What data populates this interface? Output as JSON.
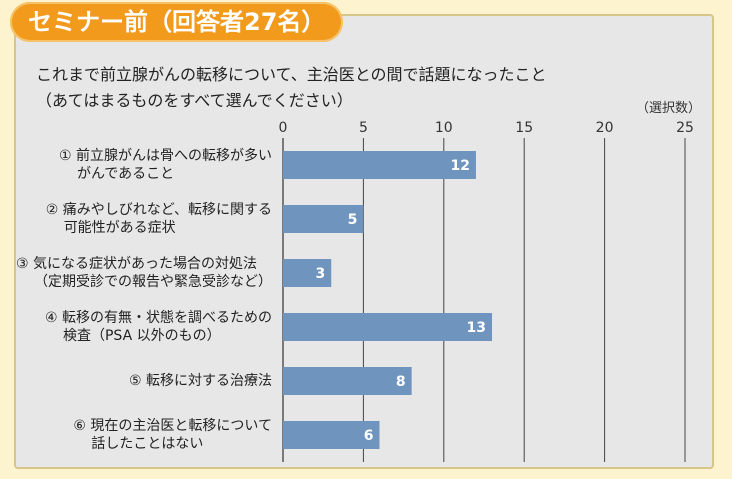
{
  "header": {
    "badge": "セミナー前（回答者27名）"
  },
  "question": {
    "line1": "これまで前立腺がんの転移について、主治医との間で話題になったこと",
    "line2": "（あてはまるものをすべて選んでください）"
  },
  "chart_data": {
    "type": "bar",
    "orientation": "horizontal",
    "unit_label": "（選択数）",
    "xlim": [
      0,
      25
    ],
    "ticks": [
      0,
      5,
      10,
      15,
      20,
      25
    ],
    "categories": [
      [
        "① 前立腺がんは骨への転移が多い",
        "がんであること"
      ],
      [
        "② 痛みやしびれなど、転移に関する",
        "可能性がある症状"
      ],
      [
        "③ 気になる症状があった場合の対処法",
        "（定期受診での報告や緊急受診など）"
      ],
      [
        "④ 転移の有無・状態を調べるための",
        "検査（PSA 以外のもの）"
      ],
      [
        "⑤ 転移に対する治療法"
      ],
      [
        "⑥ 現在の主治医と転移について",
        "話したことはない"
      ]
    ],
    "values": [
      12,
      5,
      3,
      13,
      8,
      6
    ],
    "bar_color": "#6f95bf",
    "grid": true
  }
}
